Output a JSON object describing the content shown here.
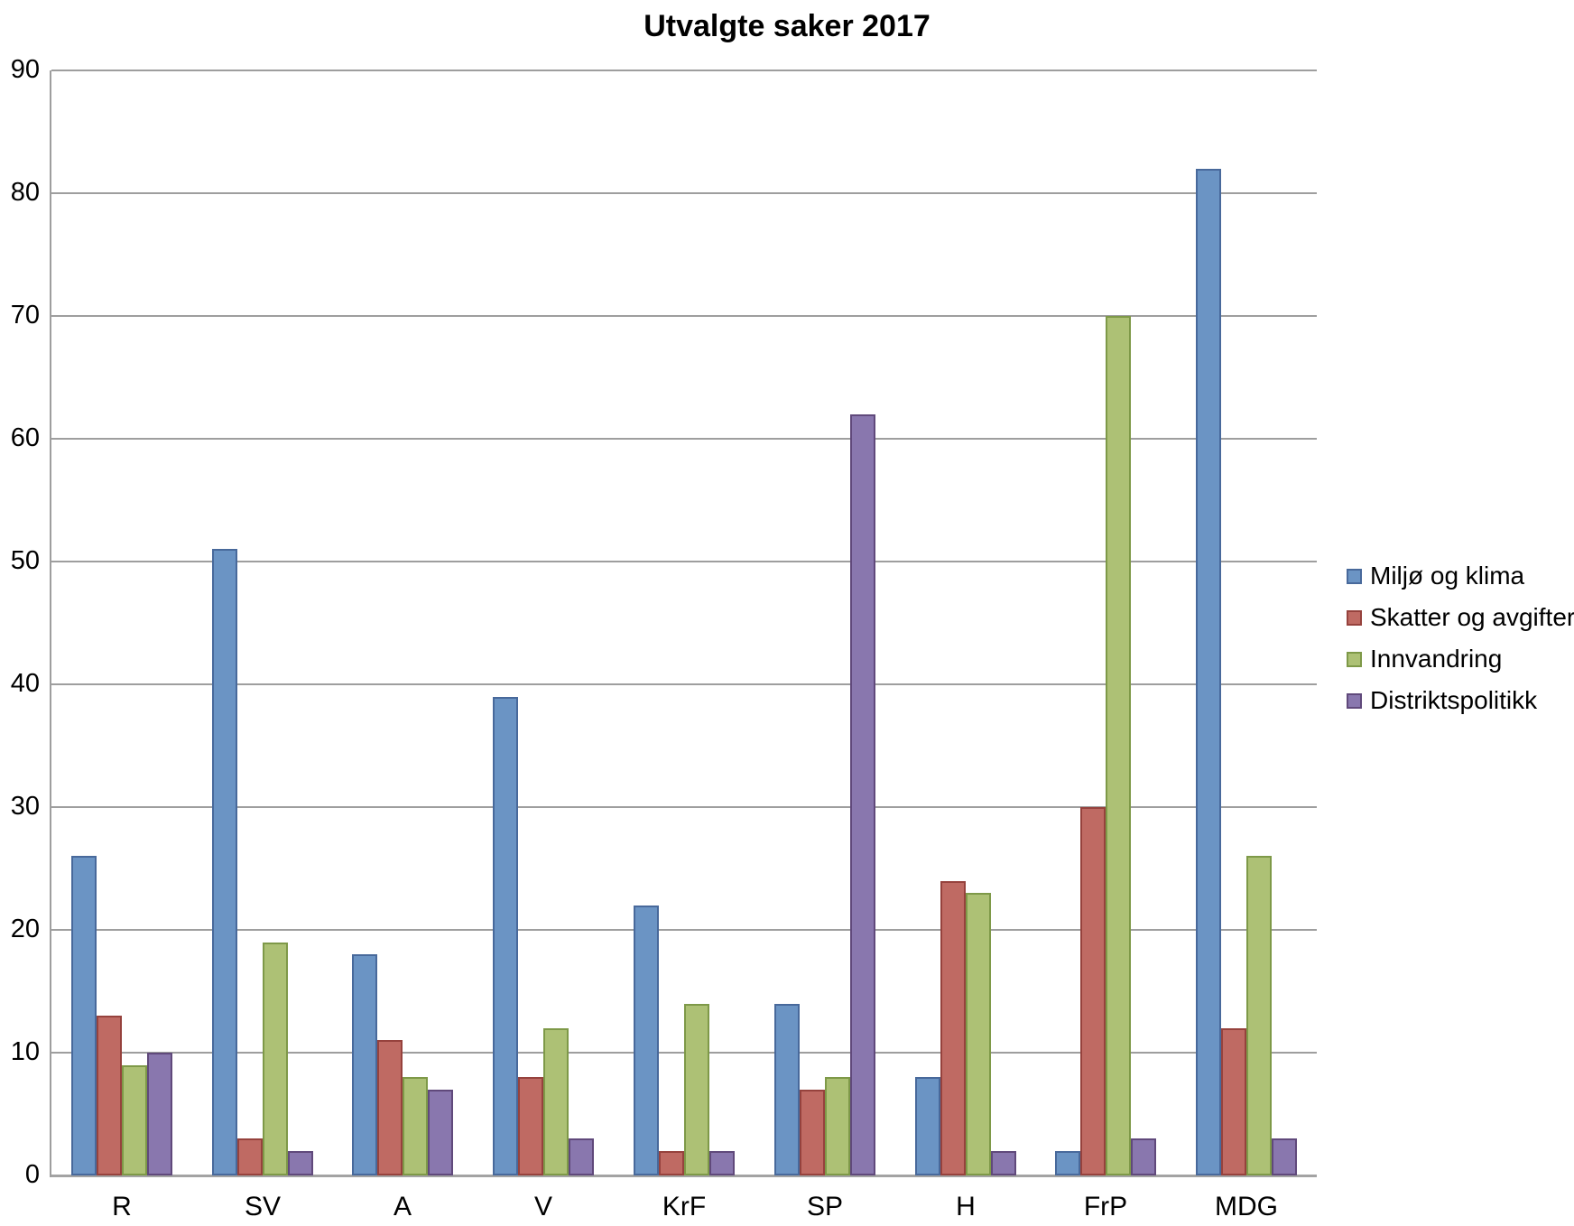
{
  "title": "Utvalgte saker 2017",
  "chart_data": {
    "type": "bar",
    "title": "Utvalgte saker 2017",
    "categories": [
      "R",
      "SV",
      "A",
      "V",
      "KrF",
      "SP",
      "H",
      "FrP",
      "MDG"
    ],
    "series": [
      {
        "name": "Miljø og klima",
        "fill": "#6B94C4",
        "border": "#48699B",
        "values": [
          26,
          51,
          18,
          39,
          22,
          14,
          8,
          2,
          82
        ]
      },
      {
        "name": "Skatter og avgifter",
        "fill": "#BF6A63",
        "border": "#96423D",
        "values": [
          13,
          3,
          11,
          8,
          2,
          7,
          24,
          30,
          12
        ]
      },
      {
        "name": "Innvandring",
        "fill": "#ADC175",
        "border": "#7E9948",
        "values": [
          9,
          19,
          8,
          12,
          14,
          8,
          23,
          70,
          26
        ]
      },
      {
        "name": "Distriktspolitikk",
        "fill": "#8977AE",
        "border": "#60497B",
        "values": [
          10,
          2,
          7,
          3,
          2,
          62,
          2,
          3,
          3
        ]
      }
    ],
    "ylim": [
      0,
      90
    ],
    "ytick_step": 10,
    "yticks": [
      "0",
      "10",
      "20",
      "30",
      "40",
      "50",
      "60",
      "70",
      "80",
      "90"
    ],
    "grid": true,
    "legend_position": "right"
  },
  "colors": {
    "gridline": "#9E9E9E",
    "axis": "#A3A3A3",
    "text": "#000000",
    "background": "#FFFFFF"
  }
}
